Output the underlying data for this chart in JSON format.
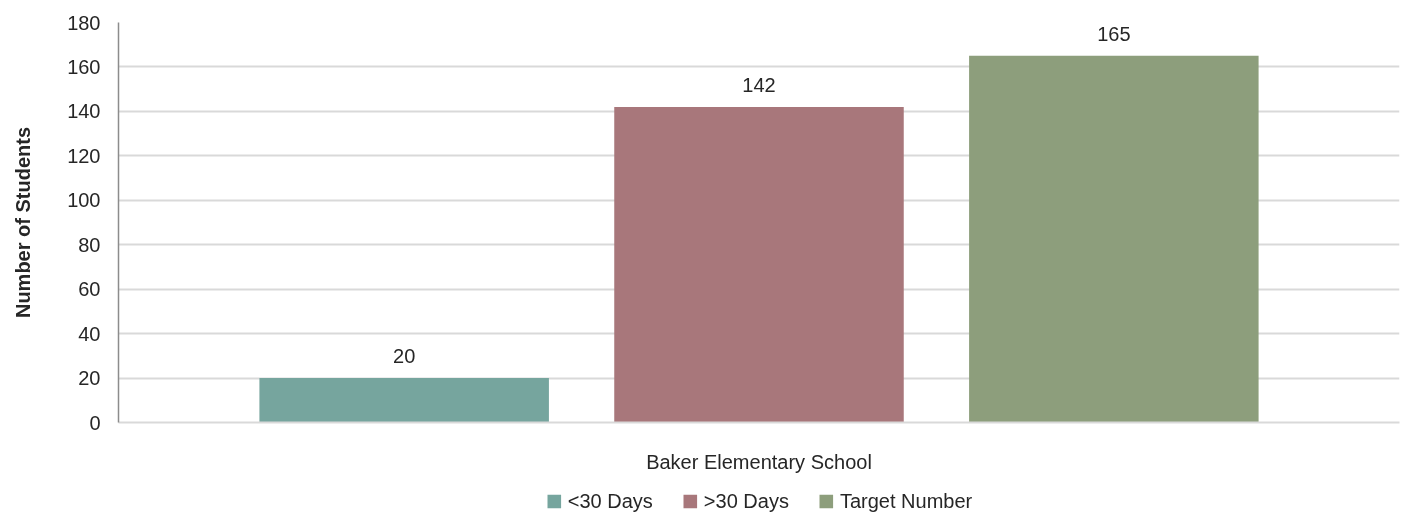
{
  "chart_data": {
    "type": "bar",
    "ylabel": "Number of Students",
    "categories": [
      "Baker Elementary School"
    ],
    "series": [
      {
        "name": "<30 Days",
        "color": "#76a59e",
        "values": [
          20
        ]
      },
      {
        "name": ">30 Days",
        "color": "#a8777b",
        "values": [
          142
        ]
      },
      {
        "name": "Target Number",
        "color": "#8d9e7c",
        "values": [
          165
        ]
      }
    ],
    "ylim": [
      0,
      180
    ],
    "yticks": [
      0,
      20,
      40,
      60,
      80,
      100,
      120,
      140,
      160,
      180
    ],
    "grid": "y",
    "legend": "bottom",
    "data_labels": true
  }
}
